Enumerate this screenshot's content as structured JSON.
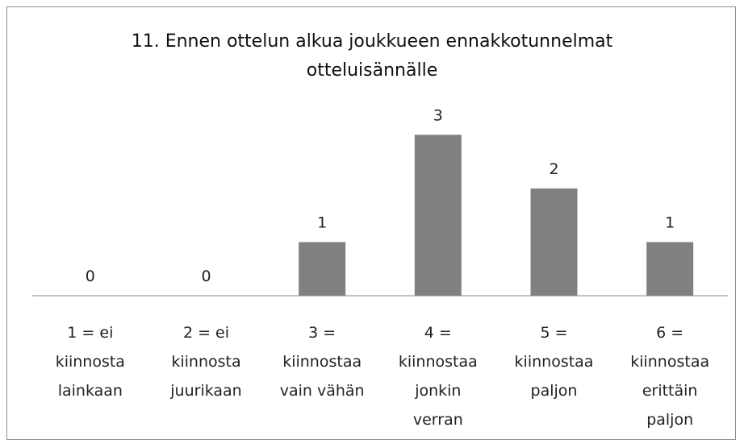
{
  "chart_data": {
    "type": "bar",
    "title": "11. Ennen ottelun alkua joukkueen ennakkotunnelmat otteluisännälle",
    "categories": [
      "1 = ei kiinnosta lainkaan",
      "2 = ei kiinnosta juurikaan",
      "3 = kiinnostaa vain vähän",
      "4 = kiinnostaa jonkin verran",
      "5 = kiinnostaa paljon",
      "6 = kiinnostaa erittäin paljon"
    ],
    "values": [
      0,
      0,
      1,
      3,
      2,
      1
    ],
    "color": "#808080",
    "ylim": [
      0,
      3.5
    ]
  }
}
